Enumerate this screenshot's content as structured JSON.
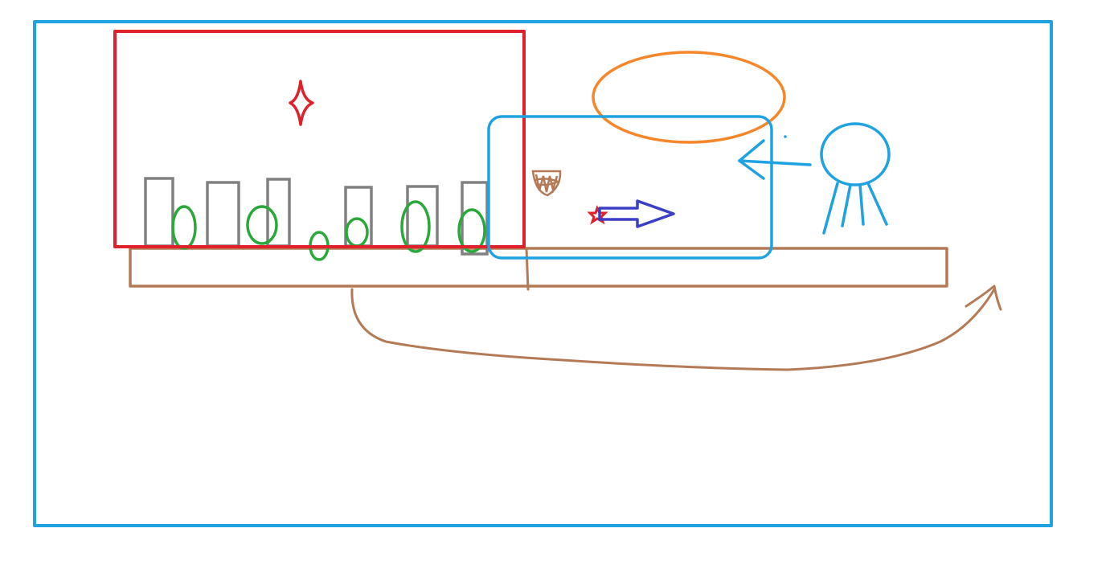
{
  "colors": {
    "background": "#ffffff",
    "outer_frame": "#1fa2e0",
    "red_region": "#e0202a",
    "bars": "#808080",
    "bushes": "#2aa83a",
    "ground": "#b47a56",
    "blue_region": "#1fa2e0",
    "orange_ellipse": "#f5862a",
    "arrow": "#3b3fc8",
    "sparkle": "#e0202a",
    "figure": "#1fa2e0"
  },
  "elements": {
    "outer_frame": "rectangle",
    "red_region": "rectangle",
    "star": "four-point-star",
    "bars": "rectangles",
    "bushes": "ellipses",
    "ground": "platform",
    "blue_region": "rounded-rectangle",
    "sun": "ellipse",
    "arrow": "right-arrow",
    "figure": "stick-figure",
    "return_arrow": "curved-arrow"
  }
}
